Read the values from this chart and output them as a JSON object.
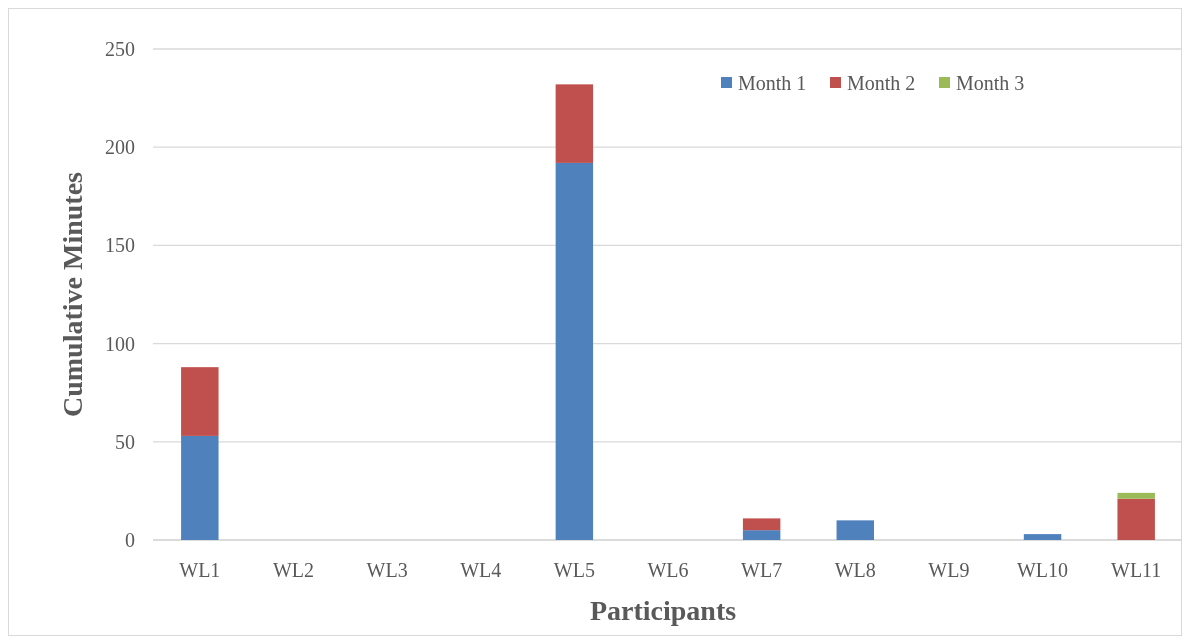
{
  "chart_data": {
    "type": "bar",
    "stacked": true,
    "xlabel": "Participants",
    "ylabel": "Cumulative Minutes",
    "categories": [
      "WL1",
      "WL2",
      "WL3",
      "WL4",
      "WL5",
      "WL6",
      "WL7",
      "WL8",
      "WL9",
      "WL10",
      "WL11"
    ],
    "series": [
      {
        "name": "Month 1",
        "color": "#4f81bd",
        "values": [
          53,
          0,
          0,
          0,
          192,
          0,
          5,
          10,
          0,
          3,
          0
        ]
      },
      {
        "name": "Month 2",
        "color": "#c0504d",
        "values": [
          35,
          0,
          0,
          0,
          40,
          0,
          6,
          0,
          0,
          0,
          21
        ]
      },
      {
        "name": "Month 3",
        "color": "#9bbb59",
        "values": [
          0,
          0,
          0,
          0,
          0,
          0,
          0,
          0,
          0,
          0,
          3
        ]
      }
    ],
    "ylim": [
      0,
      250
    ],
    "yticks": [
      0,
      50,
      100,
      150,
      200,
      250
    ],
    "grid": "y",
    "legend": "top right"
  }
}
